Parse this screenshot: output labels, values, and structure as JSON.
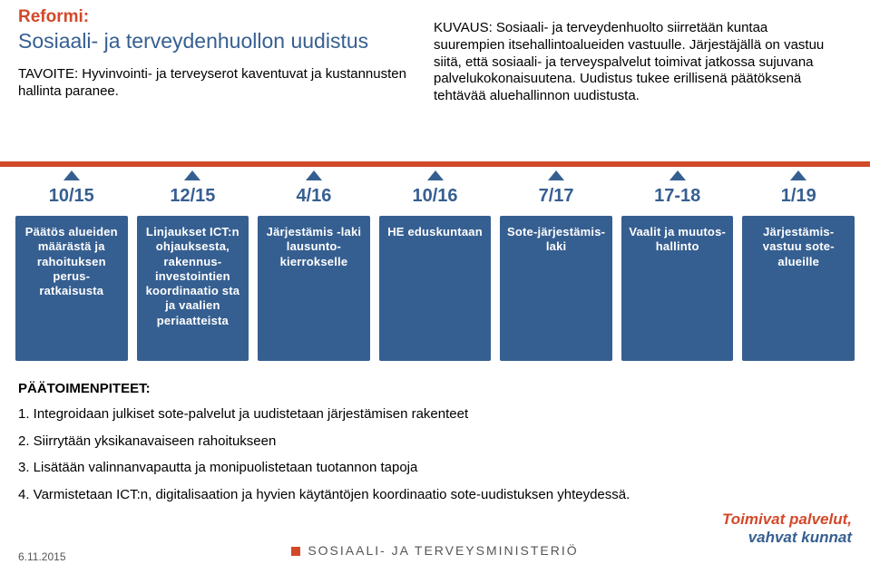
{
  "colors": {
    "orange": "#d2492a",
    "blue": "#365f91",
    "dark": "#000000",
    "hline": "#d2492a",
    "arrow": "#365f91",
    "box_bg": "#365f91",
    "box_text": "#ffffff",
    "page_bg": "#ffffff"
  },
  "header": {
    "reformi": "Reformi:",
    "title": "Sosiaali- ja terveydenhuollon uudistus",
    "tavoite_label": "TAVOITE:",
    "tavoite_text": " Hyvinvointi- ja terveyserot kaventuvat ja kustannusten hallinta paranee."
  },
  "kuvaus": {
    "label": "KUVAUS:",
    "text": " Sosiaali- ja terveydenhuolto siirretään kuntaa suurempien itsehallintoalueiden vastuulle. Järjestäjällä on vastuu siitä, että sosiaali- ja terveyspalvelut toimivat jatkossa sujuvana palvelukokonaisuutena. Uudistus tukee erillisenä päätöksenä tehtävää aluehallinnon uudistusta."
  },
  "timeline": {
    "dates": [
      "10/15",
      "12/15",
      "4/16",
      "10/16",
      "7/17",
      "17-18",
      "1/19"
    ],
    "boxes": [
      "Päätös alueiden määrästä ja rahoituksen perus-ratkaisusta",
      "Linjaukset ICT:n ohjauksesta, rakennus-investointien koordinaatio sta ja vaalien periaatteista",
      "Järjestämis -laki lausunto-kierrokselle",
      "HE eduskuntaan",
      "Sote-järjestämis-laki",
      "Vaalit ja muutos-hallinto",
      "Järjestämis-vastuu sote-alueille"
    ]
  },
  "actions": {
    "title": "PÄÄTOIMENPITEET:",
    "items": [
      "1. Integroidaan julkiset sote-palvelut ja uudistetaan järjestämisen rakenteet",
      "2. Siirrytään yksikanavaiseen rahoitukseen",
      "3. Lisätään valinnanvapautta ja monipuolistetaan tuotannon tapoja",
      "4. Varmistetaan ICT:n, digitalisaation ja hyvien käytäntöjen koordinaatio sote-uudistuksen yhteydessä."
    ]
  },
  "footer": {
    "date": "6.11.2015",
    "ministry": "SOSIAALI- JA TERVEYSMINISTERIÖ",
    "logo_line1": "Toimivat palvelut,",
    "logo_line2": "vahvat kunnat"
  }
}
